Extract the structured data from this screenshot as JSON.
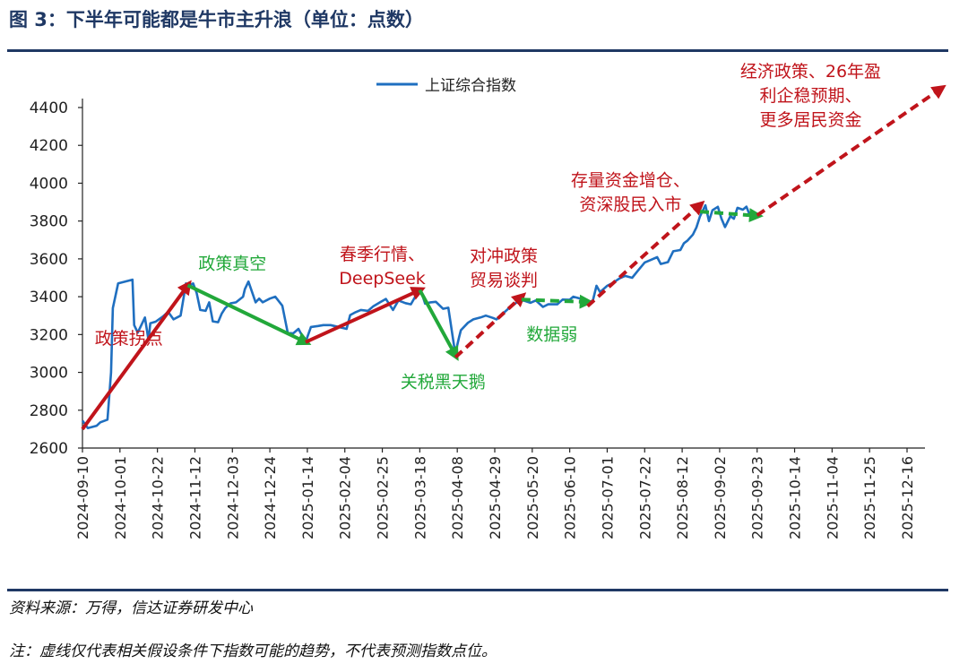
{
  "figure": {
    "title": "图 3：下半年可能都是牛市主升浪（单位：点数）",
    "source": "资料来源：万得，信达证券研发中心",
    "note": "注：虚线仅代表相关假设条件下指数可能的趋势，不代表预测指数点位。"
  },
  "colors": {
    "series": "#1f6fc0",
    "up_arrow": "#c0141b",
    "down_arrow": "#22a83a",
    "title": "#1f3864",
    "rule": "#1f3864"
  },
  "chart_data": {
    "type": "line",
    "legend": "上证综合指数",
    "legend_position": "top-center",
    "grid": false,
    "ylim": [
      2600,
      4400
    ],
    "yticks": [
      "2600",
      "2800",
      "3000",
      "3200",
      "3400",
      "3600",
      "3800",
      "4000",
      "4200",
      "4400"
    ],
    "xticks": [
      "2024-09-10",
      "2024-10-01",
      "2024-10-22",
      "2024-11-12",
      "2024-12-03",
      "2024-12-24",
      "2025-01-14",
      "2025-02-04",
      "2025-02-25",
      "2025-03-18",
      "2025-04-08",
      "2025-04-29",
      "2025-05-20",
      "2025-06-10",
      "2025-07-01",
      "2025-07-22",
      "2025-08-12",
      "2025-09-02",
      "2025-09-23",
      "2025-10-14",
      "2025-11-04",
      "2025-11-25",
      "2025-12-16"
    ],
    "series": [
      {
        "name": "上证综合指数",
        "x": [
          "2024-09-10",
          "2024-09-13",
          "2024-09-18",
          "2024-09-20",
          "2024-09-24",
          "2024-09-26",
          "2024-09-27",
          "2024-09-30",
          "2024-10-08",
          "2024-10-09",
          "2024-10-11",
          "2024-10-15",
          "2024-10-17",
          "2024-10-18",
          "2024-10-21",
          "2024-10-25",
          "2024-10-28",
          "2024-10-31",
          "2024-11-04",
          "2024-11-07",
          "2024-11-08",
          "2024-11-11",
          "2024-11-13",
          "2024-11-15",
          "2024-11-18",
          "2024-11-20",
          "2024-11-22",
          "2024-11-25",
          "2024-11-27",
          "2024-11-29",
          "2024-12-02",
          "2024-12-05",
          "2024-12-09",
          "2024-12-10",
          "2024-12-12",
          "2024-12-16",
          "2024-12-18",
          "2024-12-20",
          "2024-12-24",
          "2024-12-27",
          "2024-12-31",
          "2025-01-03",
          "2025-01-06",
          "2025-01-09",
          "2025-01-13",
          "2025-01-16",
          "2025-01-20",
          "2025-01-23",
          "2025-01-27",
          "2025-02-05",
          "2025-02-07",
          "2025-02-10",
          "2025-02-13",
          "2025-02-17",
          "2025-02-20",
          "2025-02-24",
          "2025-02-27",
          "2025-03-03",
          "2025-03-06",
          "2025-03-10",
          "2025-03-13",
          "2025-03-17",
          "2025-03-19",
          "2025-03-21",
          "2025-03-24",
          "2025-03-27",
          "2025-03-31",
          "2025-04-03",
          "2025-04-07",
          "2025-04-08",
          "2025-04-09",
          "2025-04-10",
          "2025-04-14",
          "2025-04-17",
          "2025-04-21",
          "2025-04-24",
          "2025-04-28",
          "2025-04-30",
          "2025-05-07",
          "2025-05-12",
          "2025-05-15",
          "2025-05-19",
          "2025-05-22",
          "2025-05-26",
          "2025-05-29",
          "2025-06-03",
          "2025-06-06",
          "2025-06-10",
          "2025-06-12",
          "2025-06-16",
          "2025-06-19",
          "2025-06-23",
          "2025-06-25",
          "2025-06-27",
          "2025-07-01",
          "2025-07-04",
          "2025-07-08",
          "2025-07-11",
          "2025-07-15",
          "2025-07-18",
          "2025-07-22",
          "2025-07-25",
          "2025-07-29",
          "2025-07-31",
          "2025-08-04",
          "2025-08-07",
          "2025-08-11",
          "2025-08-13",
          "2025-08-15",
          "2025-08-18",
          "2025-08-20",
          "2025-08-22",
          "2025-08-25",
          "2025-08-27",
          "2025-08-29",
          "2025-09-01",
          "2025-09-03",
          "2025-09-05",
          "2025-09-08",
          "2025-09-10",
          "2025-09-12",
          "2025-09-15",
          "2025-09-17",
          "2025-09-19"
        ],
        "y": [
          2745,
          2705,
          2718,
          2736,
          2750,
          3000,
          3340,
          3470,
          3490,
          3250,
          3210,
          3290,
          3170,
          3260,
          3268,
          3295,
          3320,
          3280,
          3300,
          3470,
          3455,
          3470,
          3420,
          3330,
          3325,
          3370,
          3270,
          3265,
          3310,
          3340,
          3365,
          3370,
          3400,
          3440,
          3480,
          3370,
          3390,
          3370,
          3390,
          3400,
          3352,
          3210,
          3206,
          3230,
          3160,
          3240,
          3245,
          3250,
          3250,
          3230,
          3303,
          3318,
          3330,
          3325,
          3350,
          3372,
          3388,
          3330,
          3380,
          3366,
          3360,
          3426,
          3420,
          3363,
          3370,
          3373,
          3336,
          3342,
          3090,
          3145,
          3186,
          3223,
          3262,
          3280,
          3290,
          3300,
          3288,
          3280,
          3340,
          3375,
          3380,
          3368,
          3380,
          3346,
          3360,
          3360,
          3385,
          3384,
          3400,
          3390,
          3362,
          3380,
          3458,
          3424,
          3458,
          3472,
          3497,
          3510,
          3500,
          3535,
          3581,
          3593,
          3609,
          3573,
          3583,
          3640,
          3647,
          3683,
          3697,
          3728,
          3766,
          3825,
          3883,
          3800,
          3857,
          3875,
          3813,
          3768,
          3826,
          3812,
          3870,
          3860,
          3876,
          3828
        ]
      }
    ],
    "arrows": [
      {
        "kind": "up",
        "style": "solid",
        "from": {
          "x": "2024-09-10",
          "y": 2700
        },
        "to": {
          "x": "2024-11-08",
          "y": 3460
        }
      },
      {
        "kind": "down",
        "style": "solid",
        "from": {
          "x": "2024-11-08",
          "y": 3460
        },
        "to": {
          "x": "2025-01-13",
          "y": 3160
        }
      },
      {
        "kind": "up",
        "style": "solid",
        "from": {
          "x": "2025-01-13",
          "y": 3160
        },
        "to": {
          "x": "2025-03-18",
          "y": 3435
        }
      },
      {
        "kind": "down",
        "style": "solid",
        "from": {
          "x": "2025-03-18",
          "y": 3435
        },
        "to": {
          "x": "2025-04-07",
          "y": 3090
        }
      },
      {
        "kind": "up",
        "style": "dashed",
        "from": {
          "x": "2025-04-07",
          "y": 3080
        },
        "to": {
          "x": "2025-05-14",
          "y": 3400
        }
      },
      {
        "kind": "down",
        "style": "dashed",
        "from": {
          "x": "2025-05-14",
          "y": 3385
        },
        "to": {
          "x": "2025-06-20",
          "y": 3372
        }
      },
      {
        "kind": "up",
        "style": "dashed",
        "from": {
          "x": "2025-06-20",
          "y": 3350
        },
        "to": {
          "x": "2025-08-22",
          "y": 3885
        }
      },
      {
        "kind": "down",
        "style": "dashed",
        "from": {
          "x": "2025-08-22",
          "y": 3850
        },
        "to": {
          "x": "2025-09-23",
          "y": 3828
        }
      },
      {
        "kind": "up",
        "style": "dashed",
        "from": {
          "x": "2025-09-23",
          "y": 3830
        },
        "to": {
          "x": "2026-01-04",
          "y": 4500
        }
      }
    ],
    "annotations": [
      {
        "lines": [
          "政策拐点"
        ],
        "kind": "up",
        "x": "2024-10-06",
        "y": 3150,
        "anchor": "middle"
      },
      {
        "lines": [
          "政策真空"
        ],
        "kind": "down",
        "x": "2024-12-03",
        "y": 3545,
        "anchor": "middle"
      },
      {
        "lines": [
          "春季行情、",
          "DeepSeek"
        ],
        "kind": "up",
        "x": "2025-02-25",
        "y": 3595,
        "anchor": "middle"
      },
      {
        "lines": [
          "关税黑天鹅"
        ],
        "kind": "down",
        "x": "2025-03-31",
        "y": 2920,
        "anchor": "middle"
      },
      {
        "lines": [
          "对冲政策",
          "贸易谈判"
        ],
        "kind": "up",
        "x": "2025-05-04",
        "y": 3585,
        "anchor": "middle"
      },
      {
        "lines": [
          "数据弱"
        ],
        "kind": "down",
        "x": "2025-05-31",
        "y": 3170,
        "anchor": "middle"
      },
      {
        "lines": [
          "存量资金增仓、",
          "资深股民入市"
        ],
        "kind": "up",
        "x": "2025-07-14",
        "y": 3985,
        "anchor": "middle"
      },
      {
        "lines": [
          "经济政策、26年盈",
          "利企稳预期、",
          "更多居民资金"
        ],
        "kind": "up",
        "x": "2025-10-23",
        "y": 4560,
        "anchor": "middle"
      }
    ]
  }
}
